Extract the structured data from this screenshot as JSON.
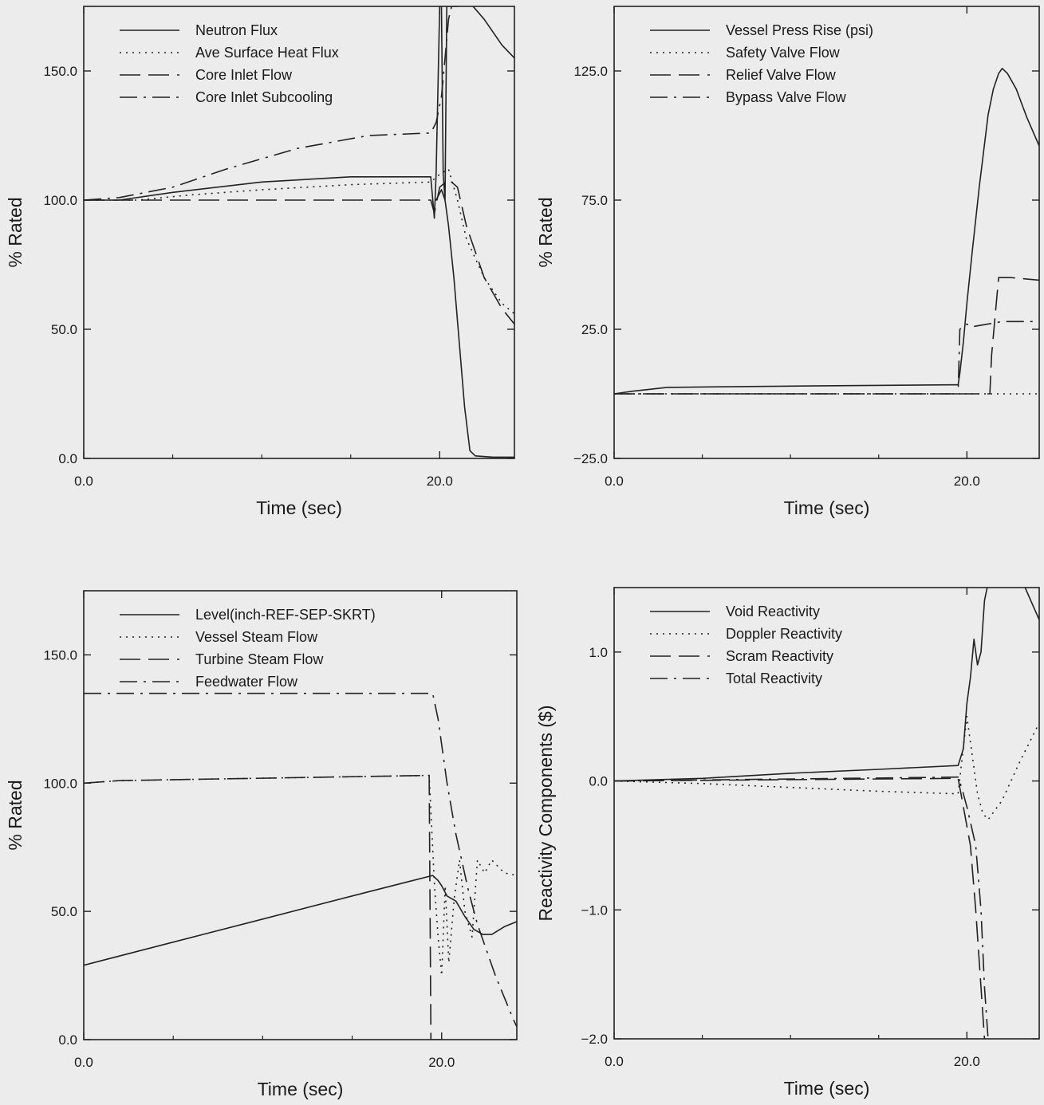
{
  "chart_data": [
    {
      "type": "line",
      "xlabel": "Time (sec)",
      "ylabel": "% Rated",
      "xlim": [
        0,
        24.2
      ],
      "ylim": [
        0,
        175
      ],
      "x_ticks": [
        0,
        20
      ],
      "x_tick_labels": [
        "0.0",
        "20.0"
      ],
      "y_ticks": [
        0,
        50,
        100,
        150
      ],
      "y_tick_labels": [
        "0.0",
        "50.0",
        "100.0",
        "150.0"
      ],
      "legend": "top-left",
      "grid": false,
      "series": [
        {
          "name": "Neutron Flux",
          "style": "solid",
          "points": [
            [
              0,
              100
            ],
            [
              2,
              100
            ],
            [
              5,
              103
            ],
            [
              10,
              107
            ],
            [
              15,
              109
            ],
            [
              19.5,
              109
            ],
            [
              19.7,
              93
            ],
            [
              19.8,
              110
            ],
            [
              20.0,
              175
            ],
            [
              20.1,
              175
            ],
            [
              20.2,
              110
            ],
            [
              20.3,
              100
            ],
            [
              20.4,
              175
            ],
            [
              21.0,
              175
            ],
            [
              21.5,
              178
            ],
            [
              22.5,
              170
            ],
            [
              23.5,
              160
            ],
            [
              24.2,
              155
            ]
          ]
        },
        {
          "name": "Ave Surface Heat Flux",
          "style": "dotted",
          "points": [
            [
              0,
              100
            ],
            [
              3,
              100
            ],
            [
              6,
              102
            ],
            [
              10,
              104
            ],
            [
              15,
              106
            ],
            [
              19.5,
              107
            ],
            [
              20.0,
              110
            ],
            [
              20.5,
              112
            ],
            [
              21.0,
              100
            ],
            [
              21.5,
              85
            ],
            [
              22.5,
              70
            ],
            [
              23.5,
              60
            ],
            [
              24.2,
              56
            ]
          ]
        },
        {
          "name": "Core Inlet Flow",
          "style": "long-dash",
          "points": [
            [
              0,
              100
            ],
            [
              19.5,
              100
            ],
            [
              19.7,
              95
            ],
            [
              20.0,
              105
            ],
            [
              20.5,
              108
            ],
            [
              21.0,
              105
            ],
            [
              21.5,
              90
            ],
            [
              22.5,
              70
            ],
            [
              23.5,
              58
            ],
            [
              24.2,
              52
            ]
          ]
        },
        {
          "name": "Core Inlet Subcooling",
          "style": "dash-dot",
          "points": [
            [
              0,
              100
            ],
            [
              2,
              101
            ],
            [
              5,
              105
            ],
            [
              8,
              112
            ],
            [
              12,
              120
            ],
            [
              16,
              125
            ],
            [
              19.5,
              126
            ],
            [
              19.8,
              130
            ],
            [
              20.1,
              140
            ],
            [
              20.3,
              155
            ],
            [
              20.5,
              170
            ],
            [
              20.7,
              176
            ]
          ]
        },
        {
          "name": "",
          "style": "solid",
          "points": [
            [
              19.8,
              100
            ],
            [
              20.1,
              104
            ],
            [
              20.3,
              100
            ],
            [
              20.5,
              90
            ],
            [
              20.8,
              70
            ],
            [
              21.1,
              45
            ],
            [
              21.4,
              20
            ],
            [
              21.7,
              3
            ],
            [
              22,
              1
            ],
            [
              23,
              0.5
            ],
            [
              24.2,
              0.5
            ]
          ]
        }
      ]
    },
    {
      "type": "line",
      "xlabel": "Time (sec)",
      "ylabel": "% Rated",
      "xlim": [
        0,
        24.1
      ],
      "ylim": [
        -25,
        150
      ],
      "x_ticks": [
        0,
        20
      ],
      "x_tick_labels": [
        "0.0",
        "20.0"
      ],
      "y_ticks": [
        -25,
        25,
        75,
        125
      ],
      "y_tick_labels": [
        "-25.0",
        "25.0",
        "75.0",
        "125.0"
      ],
      "legend": "top-left",
      "grid": false,
      "series": [
        {
          "name": "Vessel Press Rise (psi)",
          "style": "solid",
          "points": [
            [
              0,
              0
            ],
            [
              1,
              1
            ],
            [
              3,
              2.5
            ],
            [
              10,
              3
            ],
            [
              19,
              3.5
            ],
            [
              19.5,
              3.5
            ],
            [
              19.6,
              8
            ],
            [
              19.8,
              20
            ],
            [
              20.0,
              35
            ],
            [
              20.3,
              55
            ],
            [
              20.7,
              80
            ],
            [
              21.2,
              108
            ],
            [
              21.5,
              118
            ],
            [
              21.8,
              124
            ],
            [
              22.0,
              126
            ],
            [
              22.3,
              124
            ],
            [
              22.8,
              118
            ],
            [
              23.4,
              107
            ],
            [
              24.1,
              96
            ]
          ]
        },
        {
          "name": "Safety Valve Flow",
          "style": "dotted",
          "points": [
            [
              0,
              0
            ],
            [
              21.3,
              0
            ],
            [
              24.1,
              0
            ]
          ]
        },
        {
          "name": "Relief Valve Flow",
          "style": "long-dash",
          "points": [
            [
              0,
              0
            ],
            [
              21.3,
              0
            ],
            [
              21.4,
              15
            ],
            [
              21.6,
              30
            ],
            [
              21.8,
              45
            ],
            [
              22.5,
              45
            ],
            [
              24.1,
              44
            ]
          ]
        },
        {
          "name": "Bypass Valve Flow",
          "style": "dash-dot",
          "points": [
            [
              0,
              0
            ],
            [
              19.5,
              0
            ],
            [
              19.6,
              25
            ],
            [
              20.0,
              27
            ],
            [
              20.3,
              26
            ],
            [
              22.0,
              28
            ],
            [
              24.1,
              28
            ]
          ]
        }
      ]
    },
    {
      "type": "line",
      "xlabel": "Time (sec)",
      "ylabel": "% Rated",
      "xlim": [
        0,
        24.2
      ],
      "ylim": [
        0,
        175
      ],
      "x_ticks": [
        0,
        20
      ],
      "x_tick_labels": [
        "0.0",
        "20.0"
      ],
      "y_ticks": [
        0,
        50,
        100,
        150
      ],
      "y_tick_labels": [
        "0.0",
        "50.0",
        "100.0",
        "150.0"
      ],
      "legend": "top-left",
      "grid": false,
      "series": [
        {
          "name": "Level(inch-REF-SEP-SKRT)",
          "style": "solid",
          "points": [
            [
              0,
              29
            ],
            [
              5,
              38
            ],
            [
              10,
              47
            ],
            [
              15,
              56
            ],
            [
              19.5,
              64
            ],
            [
              19.8,
              62
            ],
            [
              20.0,
              60
            ],
            [
              20.3,
              56
            ],
            [
              20.8,
              54
            ],
            [
              21.3,
              48
            ],
            [
              21.8,
              43
            ],
            [
              22.3,
              41
            ],
            [
              22.8,
              41
            ],
            [
              23.5,
              44
            ],
            [
              24.2,
              46
            ]
          ]
        },
        {
          "name": "Vessel Steam Flow",
          "style": "dotted",
          "points": [
            [
              0,
              100
            ],
            [
              2,
              101
            ],
            [
              19.3,
              103
            ],
            [
              19.6,
              60
            ],
            [
              19.8,
              40
            ],
            [
              20.0,
              25
            ],
            [
              20.2,
              60
            ],
            [
              20.4,
              30
            ],
            [
              20.7,
              55
            ],
            [
              21.0,
              70
            ],
            [
              21.3,
              50
            ],
            [
              21.7,
              40
            ],
            [
              22.0,
              70
            ],
            [
              22.4,
              65
            ],
            [
              22.8,
              70
            ],
            [
              23.5,
              65
            ],
            [
              24.2,
              64
            ]
          ]
        },
        {
          "name": "Turbine Steam Flow",
          "style": "long-dash",
          "points": [
            [
              0,
              100
            ],
            [
              2,
              101
            ],
            [
              19.3,
              103
            ],
            [
              19.4,
              0
            ],
            [
              20.0,
              0
            ]
          ]
        },
        {
          "name": "Feedwater Flow",
          "style": "dash-dot",
          "points": [
            [
              0,
              135
            ],
            [
              19.5,
              135
            ],
            [
              19.8,
              125
            ],
            [
              20.3,
              100
            ],
            [
              20.8,
              80
            ],
            [
              21.5,
              58
            ],
            [
              22.0,
              45
            ],
            [
              23.0,
              25
            ],
            [
              24.0,
              8
            ],
            [
              24.2,
              5
            ]
          ]
        }
      ]
    },
    {
      "type": "line",
      "xlabel": "Time (sec)",
      "ylabel": "Reactivity Components ($)",
      "xlim": [
        0,
        24.1
      ],
      "ylim": [
        -2.0,
        1.5
      ],
      "x_ticks": [
        0,
        20
      ],
      "x_tick_labels": [
        "0.0",
        "20.0"
      ],
      "y_ticks": [
        -2,
        -1,
        0,
        1
      ],
      "y_tick_labels": [
        "-2.0",
        "-1.0",
        "0.0",
        "1.0"
      ],
      "legend": "top-left",
      "grid": false,
      "series": [
        {
          "name": "Void Reactivity",
          "style": "solid",
          "points": [
            [
              0,
              0
            ],
            [
              5,
              0.02
            ],
            [
              10,
              0.06
            ],
            [
              15,
              0.09
            ],
            [
              19.5,
              0.12
            ],
            [
              19.8,
              0.25
            ],
            [
              20.0,
              0.6
            ],
            [
              20.2,
              0.8
            ],
            [
              20.4,
              1.1
            ],
            [
              20.6,
              0.9
            ],
            [
              20.8,
              1.0
            ],
            [
              21.0,
              1.4
            ],
            [
              21.3,
              1.6
            ],
            [
              22.5,
              1.6
            ],
            [
              23.3,
              1.5
            ],
            [
              24.1,
              1.25
            ]
          ]
        },
        {
          "name": "Doppler Reactivity",
          "style": "dotted",
          "points": [
            [
              0,
              0
            ],
            [
              5,
              -0.02
            ],
            [
              10,
              -0.05
            ],
            [
              15,
              -0.08
            ],
            [
              19.5,
              -0.1
            ],
            [
              20.0,
              0.5
            ],
            [
              20.3,
              0.2
            ],
            [
              20.6,
              -0.1
            ],
            [
              20.9,
              -0.25
            ],
            [
              21.2,
              -0.3
            ],
            [
              22.0,
              -0.15
            ],
            [
              23.0,
              0.15
            ],
            [
              24.1,
              0.45
            ]
          ]
        },
        {
          "name": "Scram Reactivity",
          "style": "long-dash",
          "points": [
            [
              0,
              0
            ],
            [
              19.5,
              0.02
            ],
            [
              19.8,
              -0.2
            ],
            [
              20.2,
              -0.5
            ],
            [
              20.5,
              -1.0
            ],
            [
              20.8,
              -1.6
            ],
            [
              21.0,
              -2.0
            ]
          ]
        },
        {
          "name": "Total Reactivity",
          "style": "dash-dot",
          "points": [
            [
              0,
              0
            ],
            [
              19.5,
              0.03
            ],
            [
              19.7,
              -0.05
            ],
            [
              20.0,
              -0.2
            ],
            [
              20.5,
              -0.5
            ],
            [
              20.8,
              -1.0
            ],
            [
              21.0,
              -1.6
            ],
            [
              21.2,
              -2.0
            ]
          ]
        }
      ]
    }
  ]
}
